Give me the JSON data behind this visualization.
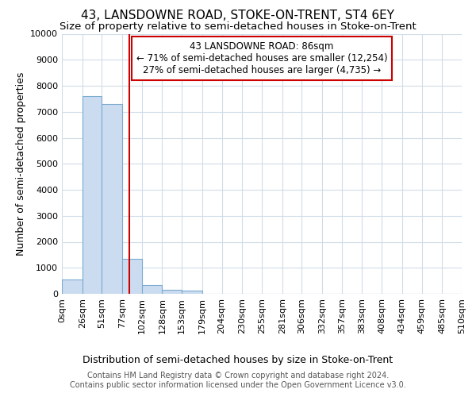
{
  "title": "43, LANSDOWNE ROAD, STOKE-ON-TRENT, ST4 6EY",
  "subtitle": "Size of property relative to semi-detached houses in Stoke-on-Trent",
  "xlabel_dist": "Distribution of semi-detached houses by size in Stoke-on-Trent",
  "ylabel": "Number of semi-detached properties",
  "footer_line1": "Contains HM Land Registry data © Crown copyright and database right 2024.",
  "footer_line2": "Contains public sector information licensed under the Open Government Licence v3.0.",
  "bin_edges": [
    0,
    26,
    51,
    77,
    102,
    128,
    153,
    179,
    204,
    230,
    255,
    281,
    306,
    332,
    357,
    383,
    408,
    434,
    459,
    485,
    510
  ],
  "bar_heights": [
    550,
    7600,
    7300,
    1350,
    350,
    150,
    130,
    0,
    0,
    0,
    0,
    0,
    0,
    0,
    0,
    0,
    0,
    0,
    0,
    0
  ],
  "bar_color": "#ccdcf0",
  "bar_edge_color": "#7aaad0",
  "background_color": "#ffffff",
  "grid_color": "#d0dce8",
  "property_size": 86,
  "red_line_color": "#cc0000",
  "annotation_title": "43 LANSDOWNE ROAD: 86sqm",
  "annotation_line1": "← 71% of semi-detached houses are smaller (12,254)",
  "annotation_line2": "27% of semi-detached houses are larger (4,735) →",
  "annotation_box_color": "#ffffff",
  "annotation_box_edge": "#cc0000",
  "ylim": [
    0,
    10000
  ],
  "yticks": [
    0,
    1000,
    2000,
    3000,
    4000,
    5000,
    6000,
    7000,
    8000,
    9000,
    10000
  ],
  "title_fontsize": 11,
  "subtitle_fontsize": 9.5,
  "axis_label_fontsize": 9,
  "tick_fontsize": 8,
  "annotation_fontsize": 8.5,
  "footer_fontsize": 7
}
